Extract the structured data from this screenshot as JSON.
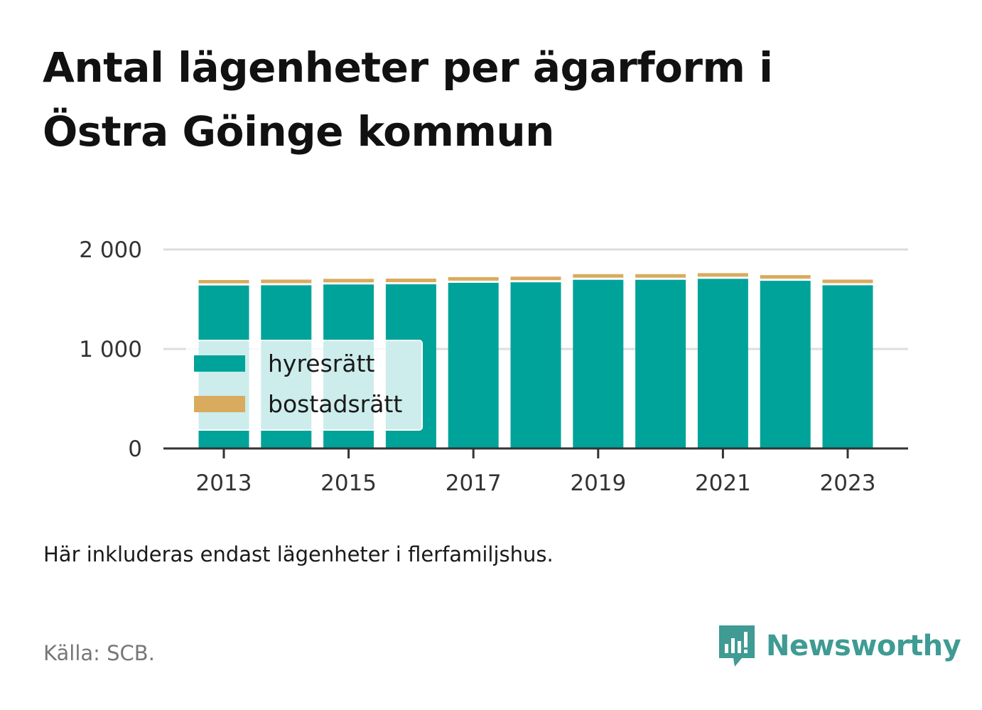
{
  "header": {
    "title_line1": "Antal lägenheter per ägarform i",
    "title_line2": "Östra Göinge kommun"
  },
  "footer": {
    "note": "Här inkluderas endast lägenheter i flerfamiljshus.",
    "source": "Källa: SCB.",
    "brand": "Newsworthy",
    "brand_icon": "bar-chart-speech-bubble-icon"
  },
  "colors": {
    "hyresratt": "#00a39a",
    "bostadsratt": "#d9ab5e",
    "brand": "#3f9b93"
  },
  "chart_data": {
    "type": "bar",
    "stacked": true,
    "x": [
      2013,
      2014,
      2015,
      2016,
      2017,
      2018,
      2019,
      2020,
      2021,
      2022,
      2023
    ],
    "x_tick_labels": [
      "2013",
      "2015",
      "2017",
      "2019",
      "2021",
      "2023"
    ],
    "series": [
      {
        "name": "hyresrätt",
        "color": "#00a39a",
        "values": [
          1638,
          1640,
          1648,
          1650,
          1665,
          1670,
          1695,
          1695,
          1705,
          1685,
          1640
        ]
      },
      {
        "name": "bostadsrätt",
        "color": "#d9ab5e",
        "values": [
          55,
          57,
          57,
          57,
          57,
          57,
          57,
          57,
          57,
          57,
          57
        ]
      }
    ],
    "ylim": [
      0,
      2000
    ],
    "yticks": [
      0,
      1000,
      2000
    ],
    "ytick_labels": [
      "0",
      "1 000",
      "2 000"
    ],
    "grid": true,
    "legend_position": "bottom-left inside"
  }
}
